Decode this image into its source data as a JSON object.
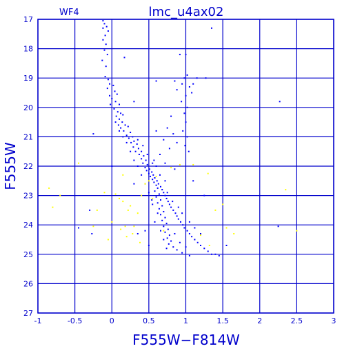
{
  "chart_data": {
    "type": "scatter",
    "title": "lmc_u4ax02",
    "panel_label": "WF4",
    "xlabel": "F555W−F814W",
    "ylabel": "F555W",
    "xlim": [
      -1,
      3
    ],
    "ylim": [
      27,
      17
    ],
    "y_inverted": true,
    "grid": true,
    "x_ticks": [
      "-1",
      "-0.5",
      "0",
      "0.5",
      "1",
      "1.5",
      "2",
      "2.5",
      "3"
    ],
    "y_ticks": [
      "17",
      "18",
      "19",
      "20",
      "21",
      "22",
      "23",
      "24",
      "25",
      "26",
      "27"
    ],
    "series": [
      {
        "color": "#0000ff",
        "points": [
          [
            -0.12,
            17.05
          ],
          [
            -0.1,
            17.15
          ],
          [
            -0.07,
            17.25
          ],
          [
            -0.12,
            17.3
          ],
          [
            -0.05,
            17.4
          ],
          [
            -0.09,
            17.55
          ],
          [
            -0.12,
            17.7
          ],
          [
            -0.08,
            17.85
          ],
          [
            -0.1,
            18.05
          ],
          [
            -0.06,
            18.2
          ],
          [
            -0.13,
            18.4
          ],
          [
            -0.08,
            18.6
          ],
          [
            -0.09,
            18.95
          ],
          [
            -0.05,
            19.05
          ],
          [
            -0.03,
            19.2
          ],
          [
            -0.06,
            19.35
          ],
          [
            0.02,
            19.25
          ],
          [
            0.04,
            19.45
          ],
          [
            0.07,
            19.55
          ],
          [
            -0.03,
            19.6
          ],
          [
            0.0,
            19.7
          ],
          [
            0.05,
            19.8
          ],
          [
            -0.02,
            19.9
          ],
          [
            0.1,
            19.9
          ],
          [
            0.03,
            20.05
          ],
          [
            0.08,
            20.15
          ],
          [
            0.12,
            20.2
          ],
          [
            0.15,
            20.25
          ],
          [
            0.06,
            20.3
          ],
          [
            0.1,
            20.4
          ],
          [
            0.14,
            20.5
          ],
          [
            0.09,
            20.6
          ],
          [
            0.18,
            20.6
          ],
          [
            0.12,
            20.7
          ],
          [
            0.22,
            20.65
          ],
          [
            0.16,
            20.8
          ],
          [
            0.25,
            20.85
          ],
          [
            0.2,
            20.95
          ],
          [
            0.28,
            21.0
          ],
          [
            0.23,
            21.05
          ],
          [
            0.3,
            21.15
          ],
          [
            0.26,
            21.2
          ],
          [
            0.34,
            21.25
          ],
          [
            0.29,
            21.35
          ],
          [
            0.36,
            21.4
          ],
          [
            0.32,
            21.5
          ],
          [
            0.4,
            21.5
          ],
          [
            0.37,
            21.6
          ],
          [
            0.43,
            21.65
          ],
          [
            0.4,
            21.75
          ],
          [
            0.46,
            21.8
          ],
          [
            0.42,
            21.9
          ],
          [
            0.48,
            21.95
          ],
          [
            0.45,
            22.05
          ],
          [
            0.51,
            22.1
          ],
          [
            0.47,
            22.15
          ],
          [
            0.54,
            22.2
          ],
          [
            0.5,
            22.25
          ],
          [
            0.56,
            22.3
          ],
          [
            0.52,
            22.35
          ],
          [
            0.58,
            22.4
          ],
          [
            0.55,
            22.45
          ],
          [
            0.61,
            22.5
          ],
          [
            0.57,
            22.55
          ],
          [
            0.63,
            22.6
          ],
          [
            0.6,
            22.65
          ],
          [
            0.66,
            22.7
          ],
          [
            0.62,
            22.75
          ],
          [
            0.68,
            22.8
          ],
          [
            0.58,
            22.85
          ],
          [
            0.7,
            22.9
          ],
          [
            0.64,
            22.95
          ],
          [
            0.72,
            23.0
          ],
          [
            0.6,
            23.05
          ],
          [
            0.74,
            23.1
          ],
          [
            0.66,
            23.15
          ],
          [
            0.76,
            23.2
          ],
          [
            0.62,
            23.25
          ],
          [
            0.78,
            23.3
          ],
          [
            0.68,
            23.35
          ],
          [
            0.8,
            23.4
          ],
          [
            0.64,
            23.45
          ],
          [
            0.83,
            23.5
          ],
          [
            0.7,
            23.55
          ],
          [
            0.86,
            23.6
          ],
          [
            0.66,
            23.65
          ],
          [
            0.88,
            23.7
          ],
          [
            0.72,
            23.75
          ],
          [
            0.9,
            23.8
          ],
          [
            0.68,
            23.85
          ],
          [
            0.93,
            23.9
          ],
          [
            0.74,
            23.95
          ],
          [
            0.96,
            24.0
          ],
          [
            0.7,
            24.05
          ],
          [
            0.98,
            24.1
          ],
          [
            0.76,
            24.15
          ],
          [
            1.02,
            24.2
          ],
          [
            0.72,
            24.25
          ],
          [
            1.05,
            24.3
          ],
          [
            0.78,
            24.35
          ],
          [
            1.08,
            24.4
          ],
          [
            0.75,
            24.45
          ],
          [
            1.12,
            24.5
          ],
          [
            0.8,
            24.55
          ],
          [
            1.16,
            24.6
          ],
          [
            0.77,
            24.65
          ],
          [
            1.2,
            24.7
          ],
          [
            0.83,
            24.75
          ],
          [
            1.25,
            24.8
          ],
          [
            0.88,
            24.85
          ],
          [
            1.3,
            24.9
          ],
          [
            0.95,
            24.95
          ],
          [
            1.35,
            25.0
          ],
          [
            1.05,
            25.05
          ],
          [
            1.4,
            25.0
          ],
          [
            1.45,
            25.05
          ],
          [
            0.55,
            23.3
          ],
          [
            0.62,
            23.6
          ],
          [
            0.58,
            23.9
          ],
          [
            0.66,
            24.2
          ],
          [
            0.7,
            24.5
          ],
          [
            0.74,
            24.8
          ],
          [
            0.85,
            24.3
          ],
          [
            0.92,
            24.6
          ],
          [
            1.0,
            24.75
          ],
          [
            0.5,
            22.9
          ],
          [
            0.54,
            23.15
          ],
          [
            0.45,
            22.6
          ],
          [
            0.4,
            22.3
          ],
          [
            0.35,
            22.0
          ],
          [
            0.6,
            22.0
          ],
          [
            0.65,
            22.3
          ],
          [
            0.72,
            22.5
          ],
          [
            0.75,
            22.9
          ],
          [
            0.82,
            23.2
          ],
          [
            0.9,
            23.4
          ],
          [
            0.95,
            23.6
          ],
          [
            1.05,
            23.9
          ],
          [
            1.12,
            24.1
          ],
          [
            1.2,
            24.3
          ],
          [
            0.2,
            21.2
          ],
          [
            0.15,
            21.0
          ],
          [
            0.25,
            21.5
          ],
          [
            0.3,
            21.8
          ],
          [
            0.1,
            20.8
          ],
          [
            0.05,
            20.5
          ],
          [
            0.35,
            21.1
          ],
          [
            0.42,
            21.3
          ],
          [
            0.48,
            21.6
          ],
          [
            0.55,
            21.9
          ],
          [
            1.0,
            18.2
          ],
          [
            0.92,
            18.2
          ],
          [
            1.02,
            18.9
          ],
          [
            0.98,
            19.0
          ],
          [
            0.95,
            19.2
          ],
          [
            1.05,
            19.3
          ],
          [
            0.88,
            19.4
          ],
          [
            1.0,
            19.6
          ],
          [
            0.94,
            19.8
          ],
          [
            1.02,
            20.0
          ],
          [
            0.98,
            20.2
          ],
          [
            1.0,
            20.5
          ],
          [
            0.96,
            20.8
          ],
          [
            1.02,
            21.0
          ],
          [
            0.99,
            21.3
          ],
          [
            1.04,
            21.5
          ],
          [
            0.85,
            19.1
          ],
          [
            1.1,
            19.2
          ],
          [
            1.08,
            19.5
          ],
          [
            1.15,
            19.0
          ],
          [
            0.8,
            20.3
          ],
          [
            0.75,
            20.7
          ],
          [
            0.7,
            21.1
          ],
          [
            0.78,
            21.4
          ],
          [
            0.65,
            21.6
          ],
          [
            0.88,
            21.2
          ],
          [
            0.83,
            20.9
          ],
          [
            0.6,
            20.8
          ],
          [
            0.72,
            21.9
          ],
          [
            0.85,
            22.1
          ],
          [
            0.17,
            18.3
          ],
          [
            1.27,
            19.0
          ],
          [
            0.6,
            19.1
          ],
          [
            0.57,
            21.8
          ],
          [
            0.3,
            19.8
          ],
          [
            -0.25,
            20.9
          ],
          [
            1.35,
            17.3
          ],
          [
            2.27,
            19.8
          ],
          [
            2.25,
            24.05
          ],
          [
            -0.45,
            24.1
          ],
          [
            -0.27,
            24.3
          ],
          [
            -0.3,
            23.5
          ],
          [
            0.35,
            24.3
          ],
          [
            1.55,
            24.7
          ],
          [
            0.45,
            24.2
          ],
          [
            0.3,
            22.6
          ],
          [
            0.0,
            22.0
          ],
          [
            1.1,
            22.5
          ],
          [
            1.25,
            23.0
          ],
          [
            0.5,
            24.7
          ]
        ]
      },
      {
        "color": "#ffff00",
        "points": [
          [
            -0.85,
            22.75
          ],
          [
            -0.8,
            23.4
          ],
          [
            -0.45,
            21.9
          ],
          [
            -0.2,
            23.5
          ],
          [
            -0.1,
            22.9
          ],
          [
            -0.05,
            24.5
          ],
          [
            0.05,
            22.95
          ],
          [
            0.1,
            23.1
          ],
          [
            0.15,
            23.2
          ],
          [
            0.2,
            24.4
          ],
          [
            0.25,
            23.35
          ],
          [
            0.3,
            24.05
          ],
          [
            0.35,
            23.6
          ],
          [
            0.4,
            23.0
          ],
          [
            0.45,
            22.6
          ],
          [
            0.5,
            22.5
          ],
          [
            0.55,
            23.1
          ],
          [
            0.6,
            22.35
          ],
          [
            0.7,
            24.2
          ],
          [
            1.1,
            21.95
          ],
          [
            1.3,
            22.25
          ],
          [
            1.4,
            23.5
          ],
          [
            1.5,
            23.3
          ],
          [
            1.55,
            24.1
          ],
          [
            1.65,
            24.3
          ],
          [
            2.35,
            22.8
          ],
          [
            2.5,
            24.2
          ],
          [
            -0.25,
            24.05
          ],
          [
            0.0,
            23.9
          ],
          [
            0.12,
            24.15
          ],
          [
            0.18,
            24.05
          ],
          [
            0.22,
            23.5
          ],
          [
            0.28,
            24.3
          ],
          [
            0.38,
            24.6
          ],
          [
            1.2,
            24.35
          ],
          [
            1.32,
            24.7
          ],
          [
            0.8,
            22.05
          ],
          [
            0.92,
            21.95
          ],
          [
            -0.7,
            23.0
          ],
          [
            0.15,
            22.3
          ]
        ]
      }
    ]
  }
}
